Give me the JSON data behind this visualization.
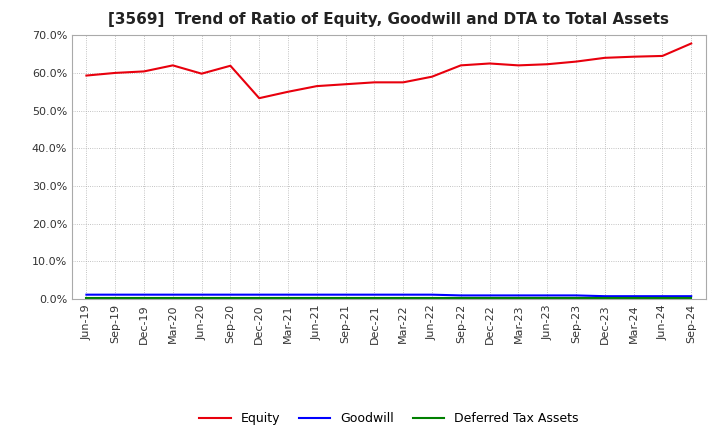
{
  "title": "[3569]  Trend of Ratio of Equity, Goodwill and DTA to Total Assets",
  "x_labels": [
    "Jun-19",
    "Sep-19",
    "Dec-19",
    "Mar-20",
    "Jun-20",
    "Sep-20",
    "Dec-20",
    "Mar-21",
    "Jun-21",
    "Sep-21",
    "Dec-21",
    "Mar-22",
    "Jun-22",
    "Sep-22",
    "Dec-22",
    "Mar-23",
    "Jun-23",
    "Sep-23",
    "Dec-23",
    "Mar-24",
    "Jun-24",
    "Sep-24"
  ],
  "equity": [
    0.593,
    0.6,
    0.604,
    0.62,
    0.598,
    0.619,
    0.533,
    0.55,
    0.565,
    0.57,
    0.575,
    0.575,
    0.59,
    0.62,
    0.625,
    0.62,
    0.623,
    0.63,
    0.64,
    0.643,
    0.645,
    0.678
  ],
  "goodwill": [
    0.012,
    0.012,
    0.012,
    0.012,
    0.012,
    0.012,
    0.012,
    0.012,
    0.012,
    0.012,
    0.012,
    0.012,
    0.012,
    0.01,
    0.01,
    0.01,
    0.01,
    0.01,
    0.008,
    0.008,
    0.008,
    0.008
  ],
  "dta": [
    0.003,
    0.003,
    0.003,
    0.003,
    0.003,
    0.003,
    0.003,
    0.003,
    0.003,
    0.003,
    0.003,
    0.003,
    0.003,
    0.003,
    0.003,
    0.003,
    0.003,
    0.003,
    0.003,
    0.003,
    0.003,
    0.003
  ],
  "equity_color": "#e8000d",
  "goodwill_color": "#0000ff",
  "dta_color": "#008000",
  "ylim": [
    0.0,
    0.7
  ],
  "yticks": [
    0.0,
    0.1,
    0.2,
    0.3,
    0.4,
    0.5,
    0.6,
    0.7
  ],
  "background_color": "#ffffff",
  "plot_bg_color": "#ffffff",
  "grid_color": "#b0b0b0",
  "legend_labels": [
    "Equity",
    "Goodwill",
    "Deferred Tax Assets"
  ],
  "title_fontsize": 11,
  "axis_fontsize": 8,
  "legend_fontsize": 9
}
